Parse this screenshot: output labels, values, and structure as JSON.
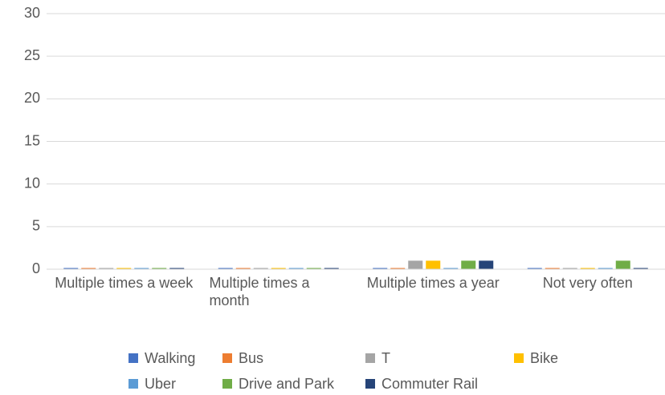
{
  "chart_data": {
    "type": "bar",
    "categories": [
      "Multiple times a week",
      "Multiple times a month",
      "Multiple times a year",
      "Not very often"
    ],
    "series": [
      {
        "name": "Walking",
        "color": "#4472c4",
        "values": [
          0,
          0,
          0,
          0
        ]
      },
      {
        "name": "Bus",
        "color": "#ed7d31",
        "values": [
          0,
          0,
          0,
          0
        ]
      },
      {
        "name": "T",
        "color": "#a5a5a5",
        "values": [
          0,
          0,
          1,
          0
        ]
      },
      {
        "name": "Bike",
        "color": "#ffc000",
        "values": [
          0,
          0,
          1,
          0
        ]
      },
      {
        "name": "Uber",
        "color": "#5b9bd5",
        "values": [
          0,
          0,
          0,
          0
        ]
      },
      {
        "name": "Drive and Park",
        "color": "#70ad47",
        "values": [
          0,
          0,
          1,
          1
        ]
      },
      {
        "name": "Commuter Rail",
        "color": "#264478",
        "values": [
          0,
          0,
          1,
          0
        ]
      }
    ],
    "ylim": [
      0,
      30
    ],
    "yticks": [
      0,
      5,
      10,
      15,
      20,
      25,
      30
    ],
    "grid": true,
    "legend": "bottom"
  }
}
